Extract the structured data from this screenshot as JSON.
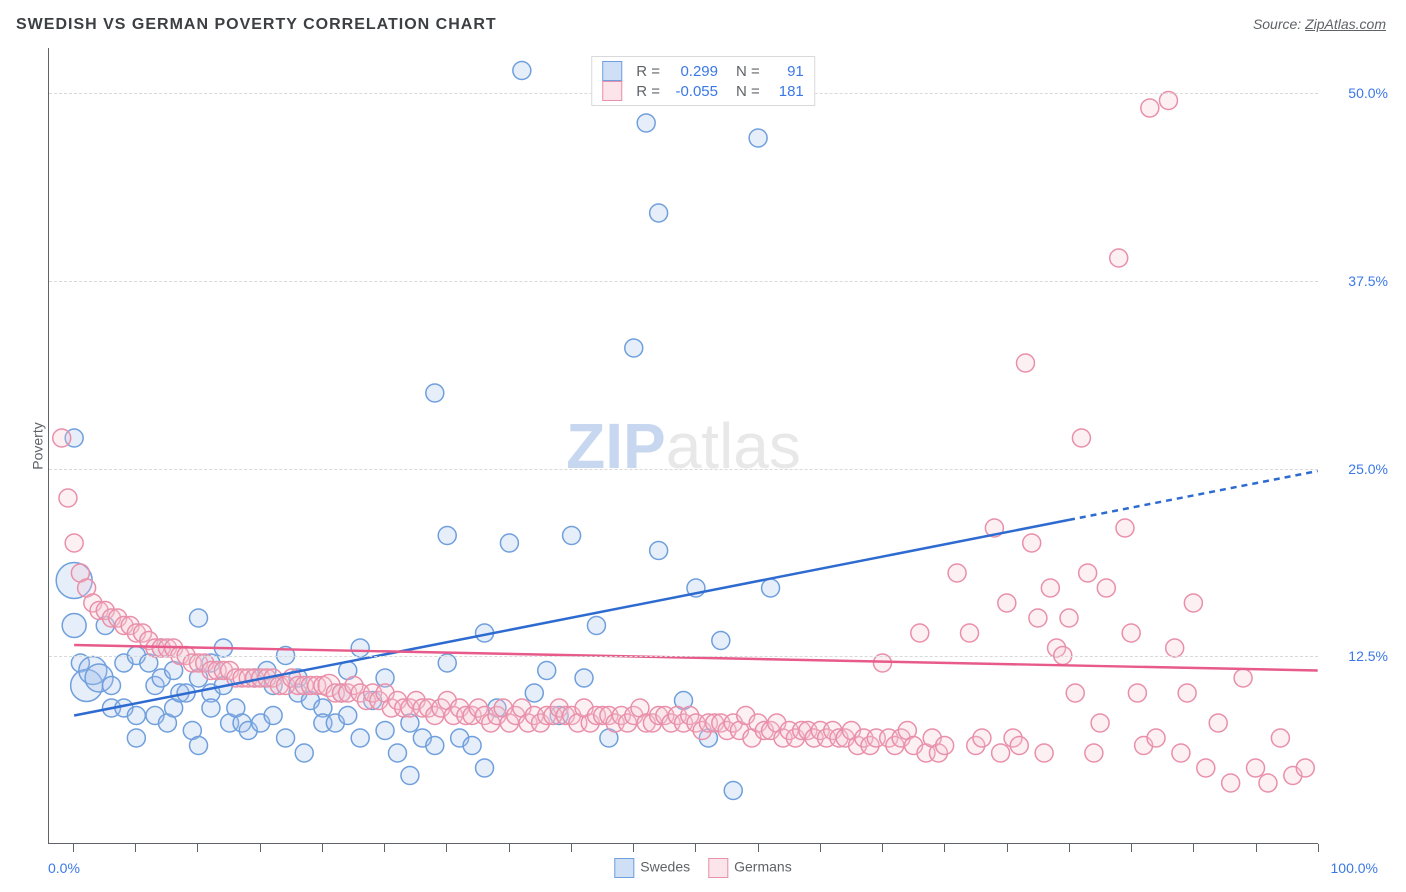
{
  "title": "SWEDISH VS GERMAN POVERTY CORRELATION CHART",
  "source_prefix": "Source: ",
  "source_name": "ZipAtlas.com",
  "y_axis_label": "Poverty",
  "watermark_z": "ZIP",
  "watermark_rest": "atlas",
  "y_ticks": [
    {
      "value": 12.5,
      "label": "12.5%"
    },
    {
      "value": 25.0,
      "label": "25.0%"
    },
    {
      "value": 37.5,
      "label": "37.5%"
    },
    {
      "value": 50.0,
      "label": "50.0%"
    }
  ],
  "x_min_label": "0.0%",
  "x_max_label": "100.0%",
  "x_ticks_pct": [
    0,
    5,
    10,
    15,
    20,
    25,
    30,
    35,
    40,
    45,
    50,
    55,
    60,
    65,
    70,
    75,
    80,
    85,
    90,
    95,
    100
  ],
  "chart": {
    "type": "scatter",
    "xlim": [
      -2,
      100
    ],
    "ylim": [
      0,
      53
    ],
    "background_color": "#ffffff",
    "grid_color": "#d9d9d9",
    "axis_color": "#5f6368",
    "tick_label_color": "#3b78e7",
    "marker_radius": 9,
    "marker_stroke_width": 1.5,
    "marker_fill_opacity": 0.28,
    "trend_line_width": 2.5
  },
  "series": [
    {
      "name": "Swedes",
      "fill": "#a4c2ec",
      "stroke": "#6f9fdc",
      "legend_swatch_fill": "#cfe0f6",
      "legend_swatch_border": "#6f9fdc",
      "R_label": "R =",
      "R_value": "0.299",
      "N_label": "N =",
      "N_value": "91",
      "trend": {
        "y_at_x0": 8.5,
        "y_at_x100": 24.8,
        "solid_until_x": 80,
        "color": "#2e6bd0"
      },
      "points": [
        [
          0,
          17.5,
          18
        ],
        [
          0,
          14.5,
          12
        ],
        [
          0.5,
          12
        ],
        [
          1,
          10.5,
          16
        ],
        [
          1.5,
          11.5,
          14
        ],
        [
          2,
          11,
          14
        ],
        [
          0,
          27
        ],
        [
          2.5,
          14.5
        ],
        [
          3,
          10.5
        ],
        [
          3,
          9
        ],
        [
          4,
          12
        ],
        [
          4,
          9
        ],
        [
          5,
          12.5
        ],
        [
          5,
          8.5
        ],
        [
          5,
          7
        ],
        [
          6,
          12
        ],
        [
          6.5,
          10.5
        ],
        [
          6.5,
          8.5
        ],
        [
          7,
          13
        ],
        [
          7,
          11
        ],
        [
          7.5,
          8
        ],
        [
          8,
          11.5
        ],
        [
          8,
          9
        ],
        [
          8.5,
          10
        ],
        [
          9,
          10
        ],
        [
          9.5,
          7.5
        ],
        [
          10,
          15
        ],
        [
          10,
          11
        ],
        [
          10,
          6.5
        ],
        [
          11,
          12
        ],
        [
          11,
          10
        ],
        [
          11,
          9
        ],
        [
          12,
          13
        ],
        [
          12,
          10.5
        ],
        [
          12.5,
          8
        ],
        [
          13,
          9
        ],
        [
          13.5,
          8
        ],
        [
          14,
          7.5
        ],
        [
          14.5,
          11
        ],
        [
          15,
          8
        ],
        [
          15.5,
          11.5
        ],
        [
          16,
          8.5
        ],
        [
          16,
          10.5
        ],
        [
          17,
          12.5
        ],
        [
          17,
          7
        ],
        [
          18,
          11
        ],
        [
          18,
          10
        ],
        [
          18.5,
          6
        ],
        [
          19,
          9.5
        ],
        [
          20,
          9
        ],
        [
          20,
          8
        ],
        [
          21,
          8
        ],
        [
          21.5,
          10
        ],
        [
          22,
          11.5
        ],
        [
          22,
          8.5
        ],
        [
          23,
          13
        ],
        [
          23,
          7
        ],
        [
          24,
          9.5
        ],
        [
          25,
          11
        ],
        [
          25,
          7.5
        ],
        [
          26,
          6
        ],
        [
          27,
          8
        ],
        [
          27,
          4.5
        ],
        [
          28,
          7
        ],
        [
          29,
          6.5
        ],
        [
          30,
          12
        ],
        [
          29,
          30
        ],
        [
          30,
          20.5
        ],
        [
          31,
          7
        ],
        [
          32,
          6.5
        ],
        [
          33,
          14
        ],
        [
          33,
          5
        ],
        [
          34,
          9
        ],
        [
          35,
          20
        ],
        [
          36,
          51.5
        ],
        [
          37,
          10
        ],
        [
          38,
          11.5
        ],
        [
          39,
          8.5
        ],
        [
          40,
          20.5
        ],
        [
          41,
          11
        ],
        [
          42,
          14.5
        ],
        [
          43,
          7
        ],
        [
          45,
          33
        ],
        [
          46,
          48
        ],
        [
          47,
          42
        ],
        [
          47,
          19.5
        ],
        [
          49,
          9.5
        ],
        [
          50,
          17
        ],
        [
          51,
          7
        ],
        [
          52,
          13.5
        ],
        [
          53,
          3.5
        ],
        [
          55,
          47
        ],
        [
          56,
          17
        ]
      ]
    },
    {
      "name": "Germans",
      "fill": "#f3c9d4",
      "stroke": "#e98fa9",
      "legend_swatch_fill": "#fbe4ea",
      "legend_swatch_border": "#e98fa9",
      "R_label": "R =",
      "R_value": "-0.055",
      "N_label": "N =",
      "N_value": "181",
      "trend": {
        "y_at_x0": 13.2,
        "y_at_x100": 11.5,
        "solid_until_x": 100,
        "color": "#e75a8a"
      },
      "points": [
        [
          -1,
          27
        ],
        [
          -0.5,
          23
        ],
        [
          0,
          20
        ],
        [
          0.5,
          18
        ],
        [
          1,
          17
        ],
        [
          1.5,
          16
        ],
        [
          2,
          15.5
        ],
        [
          2.5,
          15.5
        ],
        [
          3,
          15
        ],
        [
          3.5,
          15
        ],
        [
          4,
          14.5
        ],
        [
          4.5,
          14.5
        ],
        [
          5,
          14
        ],
        [
          5.5,
          14
        ],
        [
          6,
          13.5
        ],
        [
          6.5,
          13
        ],
        [
          7,
          13
        ],
        [
          7.5,
          13
        ],
        [
          8,
          13
        ],
        [
          8.5,
          12.5
        ],
        [
          9,
          12.5
        ],
        [
          9.5,
          12
        ],
        [
          10,
          12
        ],
        [
          10.5,
          12
        ],
        [
          11,
          11.5
        ],
        [
          11.5,
          11.5
        ],
        [
          12,
          11.5
        ],
        [
          12.5,
          11.5
        ],
        [
          13,
          11
        ],
        [
          13.5,
          11
        ],
        [
          14,
          11
        ],
        [
          14.5,
          11
        ],
        [
          15,
          11
        ],
        [
          15.5,
          11
        ],
        [
          16,
          11
        ],
        [
          16.5,
          10.5
        ],
        [
          17,
          10.5
        ],
        [
          17.5,
          11
        ],
        [
          18,
          10.5
        ],
        [
          18.5,
          10.5
        ],
        [
          19,
          10.5
        ],
        [
          19.5,
          10.5
        ],
        [
          20,
          10.5
        ],
        [
          20.5,
          10.5,
          11
        ],
        [
          21,
          10
        ],
        [
          21.5,
          10
        ],
        [
          22,
          10
        ],
        [
          22.5,
          10.5
        ],
        [
          23,
          10
        ],
        [
          23.5,
          9.5
        ],
        [
          24,
          10
        ],
        [
          24.5,
          9.5
        ],
        [
          25,
          10
        ],
        [
          25.5,
          9
        ],
        [
          26,
          9.5
        ],
        [
          26.5,
          9
        ],
        [
          27,
          9
        ],
        [
          27.5,
          9.5
        ],
        [
          28,
          9
        ],
        [
          28.5,
          9
        ],
        [
          29,
          8.5
        ],
        [
          29.5,
          9
        ],
        [
          30,
          9.5
        ],
        [
          30.5,
          8.5
        ],
        [
          31,
          9
        ],
        [
          31.5,
          8.5
        ],
        [
          32,
          8.5
        ],
        [
          32.5,
          9
        ],
        [
          33,
          8.5
        ],
        [
          33.5,
          8
        ],
        [
          34,
          8.5
        ],
        [
          34.5,
          9
        ],
        [
          35,
          8
        ],
        [
          35.5,
          8.5
        ],
        [
          36,
          9
        ],
        [
          36.5,
          8
        ],
        [
          37,
          8.5
        ],
        [
          37.5,
          8
        ],
        [
          38,
          8.5
        ],
        [
          38.5,
          8.5
        ],
        [
          39,
          9
        ],
        [
          39.5,
          8.5
        ],
        [
          40,
          8.5
        ],
        [
          40.5,
          8
        ],
        [
          41,
          9
        ],
        [
          41.5,
          8
        ],
        [
          42,
          8.5
        ],
        [
          42.5,
          8.5
        ],
        [
          43,
          8.5
        ],
        [
          43.5,
          8
        ],
        [
          44,
          8.5
        ],
        [
          44.5,
          8
        ],
        [
          45,
          8.5
        ],
        [
          45.5,
          9
        ],
        [
          46,
          8
        ],
        [
          46.5,
          8
        ],
        [
          47,
          8.5
        ],
        [
          47.5,
          8.5
        ],
        [
          48,
          8
        ],
        [
          48.5,
          8.5
        ],
        [
          49,
          8
        ],
        [
          49.5,
          8.5
        ],
        [
          50,
          8
        ],
        [
          50.5,
          7.5
        ],
        [
          51,
          8
        ],
        [
          51.5,
          8
        ],
        [
          52,
          8
        ],
        [
          52.5,
          7.5
        ],
        [
          53,
          8
        ],
        [
          53.5,
          7.5
        ],
        [
          54,
          8.5
        ],
        [
          54.5,
          7
        ],
        [
          55,
          8
        ],
        [
          55.5,
          7.5
        ],
        [
          56,
          7.5
        ],
        [
          56.5,
          8
        ],
        [
          57,
          7
        ],
        [
          57.5,
          7.5
        ],
        [
          58,
          7
        ],
        [
          58.5,
          7.5
        ],
        [
          59,
          7.5
        ],
        [
          59.5,
          7
        ],
        [
          60,
          7.5
        ],
        [
          60.5,
          7
        ],
        [
          61,
          7.5
        ],
        [
          61.5,
          7
        ],
        [
          62,
          7
        ],
        [
          62.5,
          7.5
        ],
        [
          63,
          6.5
        ],
        [
          63.5,
          7
        ],
        [
          64,
          6.5
        ],
        [
          64.5,
          7
        ],
        [
          65,
          12
        ],
        [
          65.5,
          7
        ],
        [
          66,
          6.5
        ],
        [
          66.5,
          7
        ],
        [
          67,
          7.5
        ],
        [
          67.5,
          6.5
        ],
        [
          68,
          14
        ],
        [
          68.5,
          6
        ],
        [
          69,
          7
        ],
        [
          69.5,
          6
        ],
        [
          70,
          6.5
        ],
        [
          71,
          18
        ],
        [
          72,
          14
        ],
        [
          72.5,
          6.5
        ],
        [
          73,
          7
        ],
        [
          74,
          21
        ],
        [
          74.5,
          6
        ],
        [
          75,
          16
        ],
        [
          75.5,
          7
        ],
        [
          76,
          6.5
        ],
        [
          76.5,
          32
        ],
        [
          77,
          20
        ],
        [
          77.5,
          15
        ],
        [
          78,
          6
        ],
        [
          78.5,
          17
        ],
        [
          79,
          13
        ],
        [
          79.5,
          12.5
        ],
        [
          80,
          15
        ],
        [
          80.5,
          10
        ],
        [
          81,
          27
        ],
        [
          81.5,
          18
        ],
        [
          82,
          6
        ],
        [
          82.5,
          8
        ],
        [
          83,
          17
        ],
        [
          84,
          39
        ],
        [
          84.5,
          21
        ],
        [
          85,
          14
        ],
        [
          85.5,
          10
        ],
        [
          86,
          6.5
        ],
        [
          86.5,
          49
        ],
        [
          87,
          7
        ],
        [
          88,
          49.5
        ],
        [
          88.5,
          13
        ],
        [
          89,
          6
        ],
        [
          89.5,
          10
        ],
        [
          90,
          16
        ],
        [
          91,
          5
        ],
        [
          92,
          8
        ],
        [
          93,
          4
        ],
        [
          94,
          11
        ],
        [
          95,
          5
        ],
        [
          96,
          4
        ],
        [
          97,
          7
        ],
        [
          98,
          4.5
        ],
        [
          99,
          5
        ]
      ]
    }
  ],
  "legend_bottom_series_ref": [
    "Swedes",
    "Germans"
  ]
}
